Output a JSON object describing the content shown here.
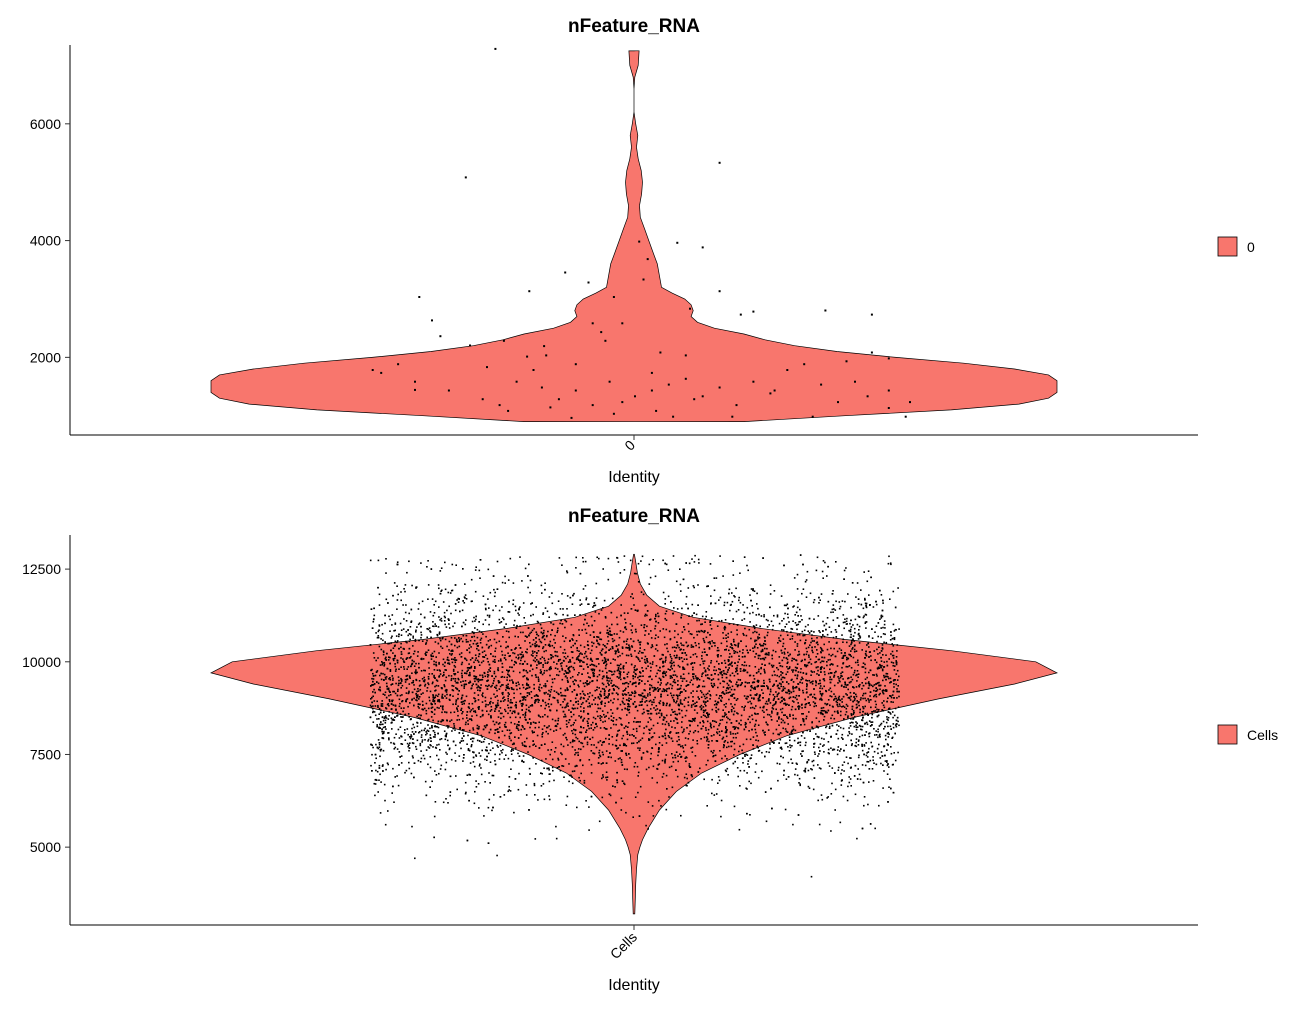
{
  "colors": {
    "violin_fill": "#F8766D",
    "outline": "#000000",
    "point": "#000000",
    "background": "#ffffff"
  },
  "chart_data": [
    {
      "type": "violin",
      "title": "nFeature_RNA",
      "xlabel": "Identity",
      "ylabel": "",
      "categories": [
        "0"
      ],
      "ylim": [
        670,
        7350
      ],
      "yticks": [
        2000,
        4000,
        6000
      ],
      "legend": {
        "position": "right",
        "entries": [
          "0"
        ]
      },
      "grid": false,
      "violin_profile": [
        [
          900,
          0.26
        ],
        [
          1000,
          0.5
        ],
        [
          1100,
          0.75
        ],
        [
          1200,
          0.91
        ],
        [
          1300,
          0.98
        ],
        [
          1400,
          1.0
        ],
        [
          1500,
          1.0
        ],
        [
          1600,
          1.0
        ],
        [
          1700,
          0.98
        ],
        [
          1800,
          0.9
        ],
        [
          1900,
          0.78
        ],
        [
          2000,
          0.62
        ],
        [
          2100,
          0.48
        ],
        [
          2200,
          0.38
        ],
        [
          2300,
          0.31
        ],
        [
          2400,
          0.26
        ],
        [
          2500,
          0.19
        ],
        [
          2600,
          0.15
        ],
        [
          2700,
          0.135
        ],
        [
          2800,
          0.14
        ],
        [
          2900,
          0.135
        ],
        [
          3000,
          0.12
        ],
        [
          3100,
          0.09
        ],
        [
          3200,
          0.065
        ],
        [
          3400,
          0.06
        ],
        [
          3600,
          0.055
        ],
        [
          3800,
          0.045
        ],
        [
          4000,
          0.035
        ],
        [
          4200,
          0.025
        ],
        [
          4400,
          0.015
        ],
        [
          4600,
          0.013
        ],
        [
          4800,
          0.018
        ],
        [
          5000,
          0.02
        ],
        [
          5200,
          0.017
        ],
        [
          5400,
          0.01
        ],
        [
          5600,
          0.006
        ],
        [
          5800,
          0.009
        ],
        [
          6000,
          0.004
        ],
        [
          6200,
          0.0
        ],
        [
          6400,
          0.0
        ],
        [
          6600,
          0.0
        ],
        [
          6800,
          0.002
        ],
        [
          7000,
          0.01
        ],
        [
          7250,
          0.012
        ]
      ],
      "points": [
        [
          -0.33,
          7300
        ],
        [
          -0.4,
          5100
        ],
        [
          -0.165,
          3470
        ],
        [
          -0.51,
          3050
        ],
        [
          -0.46,
          2380
        ],
        [
          -0.48,
          2650
        ],
        [
          -0.39,
          2220
        ],
        [
          -0.31,
          2300
        ],
        [
          -0.255,
          2030
        ],
        [
          -0.215,
          2210
        ],
        [
          -0.52,
          1600
        ],
        [
          -0.52,
          1460
        ],
        [
          -0.44,
          1450
        ],
        [
          -0.36,
          1300
        ],
        [
          -0.32,
          1200
        ],
        [
          -0.28,
          1600
        ],
        [
          -0.22,
          1500
        ],
        [
          -0.2,
          1160
        ],
        [
          -0.18,
          1300
        ],
        [
          -0.14,
          1450
        ],
        [
          -0.1,
          1200
        ],
        [
          -0.06,
          1600
        ],
        [
          -0.03,
          1250
        ],
        [
          0.0,
          1350
        ],
        [
          0.04,
          1450
        ],
        [
          0.08,
          1550
        ],
        [
          0.12,
          1650
        ],
        [
          0.16,
          1350
        ],
        [
          0.2,
          1500
        ],
        [
          0.24,
          1200
        ],
        [
          0.28,
          1600
        ],
        [
          0.32,
          1400
        ],
        [
          0.36,
          1800
        ],
        [
          0.4,
          1900
        ],
        [
          0.44,
          1550
        ],
        [
          0.48,
          1250
        ],
        [
          0.52,
          1600
        ],
        [
          0.55,
          1350
        ],
        [
          0.6,
          1150
        ],
        [
          0.64,
          1000
        ],
        [
          -0.6,
          1750
        ],
        [
          -0.62,
          1800
        ],
        [
          -0.56,
          1900
        ],
        [
          0.56,
          2100
        ],
        [
          0.5,
          1950
        ],
        [
          0.6,
          2000
        ],
        [
          -0.1,
          2600
        ],
        [
          0.02,
          3350
        ],
        [
          0.1,
          3980
        ],
        [
          0.16,
          3900
        ],
        [
          0.2,
          3150
        ],
        [
          0.13,
          2850
        ],
        [
          0.25,
          2750
        ],
        [
          0.28,
          2800
        ],
        [
          0.45,
          2820
        ],
        [
          0.56,
          2750
        ],
        [
          -0.07,
          2300
        ],
        [
          -0.03,
          2600
        ],
        [
          0.06,
          2100
        ],
        [
          0.12,
          2050
        ],
        [
          0.04,
          1750
        ],
        [
          -0.14,
          1900
        ],
        [
          -0.21,
          2050
        ],
        [
          -0.24,
          1800
        ],
        [
          -0.05,
          3050
        ],
        [
          0.01,
          4000
        ],
        [
          0.03,
          3700
        ],
        [
          0.2,
          5350
        ],
        [
          -0.25,
          3150
        ],
        [
          -0.11,
          3300
        ],
        [
          -0.08,
          2450
        ],
        [
          -0.35,
          1850
        ],
        [
          -0.3,
          1100
        ],
        [
          0.33,
          1450
        ],
        [
          0.42,
          1000
        ],
        [
          0.6,
          1450
        ],
        [
          0.65,
          1250
        ],
        [
          0.05,
          1100
        ],
        [
          0.09,
          1000
        ],
        [
          -0.15,
          980
        ],
        [
          -0.05,
          1050
        ],
        [
          0.14,
          1300
        ],
        [
          0.23,
          1000
        ]
      ]
    },
    {
      "type": "violin",
      "title": "nFeature_RNA",
      "xlabel": "Identity",
      "ylabel": "",
      "categories": [
        "Cells"
      ],
      "ylim": [
        2900,
        13420
      ],
      "yticks": [
        5000,
        7500,
        10000,
        12500
      ],
      "legend": {
        "position": "right",
        "entries": [
          "Cells"
        ]
      },
      "grid": false,
      "violin_profile": [
        [
          3200,
          0.002
        ],
        [
          3600,
          0.003
        ],
        [
          4000,
          0.004
        ],
        [
          4400,
          0.006
        ],
        [
          4800,
          0.009
        ],
        [
          5000,
          0.014
        ],
        [
          5200,
          0.02
        ],
        [
          5500,
          0.033
        ],
        [
          6000,
          0.06
        ],
        [
          6500,
          0.1
        ],
        [
          7000,
          0.16
        ],
        [
          7500,
          0.25
        ],
        [
          8000,
          0.36
        ],
        [
          8500,
          0.52
        ],
        [
          9000,
          0.72
        ],
        [
          9400,
          0.9
        ],
        [
          9700,
          1.0
        ],
        [
          10000,
          0.95
        ],
        [
          10300,
          0.75
        ],
        [
          10600,
          0.5
        ],
        [
          10900,
          0.3
        ],
        [
          11200,
          0.14
        ],
        [
          11500,
          0.06
        ],
        [
          11800,
          0.03
        ],
        [
          12100,
          0.015
        ],
        [
          12400,
          0.008
        ],
        [
          12700,
          0.004
        ],
        [
          12900,
          0.001
        ]
      ],
      "points_summary": {
        "n_points": 7000,
        "mean": 9300,
        "sd": 1350,
        "jitter_half_width": 0.6
      }
    }
  ]
}
